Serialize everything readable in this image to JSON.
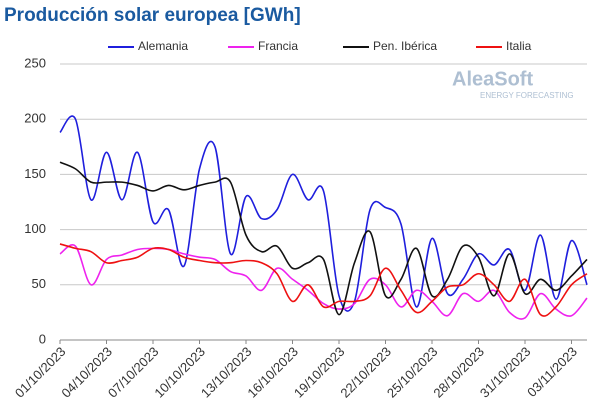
{
  "chart_data": {
    "type": "line",
    "title": "Producción solar europea [GWh]",
    "watermark": {
      "name": "AleaSoft",
      "tagline": "ENERGY FORECASTING"
    },
    "categories": [
      "01/10/2023",
      null,
      null,
      "04/10/2023",
      null,
      null,
      "07/10/2023",
      null,
      null,
      "10/10/2023",
      null,
      null,
      "13/10/2023",
      null,
      null,
      "16/10/2023",
      null,
      null,
      "19/10/2023",
      null,
      null,
      "22/10/2023",
      null,
      null,
      "25/10/2023",
      null,
      null,
      "28/10/2023",
      null,
      null,
      "31/10/2023",
      null,
      null,
      "03/11/2023",
      null
    ],
    "series": [
      {
        "name": "Alemania",
        "color": "#1f1fdd",
        "values": [
          188,
          200,
          127,
          170,
          127,
          170,
          107,
          118,
          67,
          155,
          175,
          78,
          130,
          110,
          118,
          150,
          127,
          135,
          40,
          35,
          118,
          120,
          105,
          30,
          92,
          42,
          55,
          78,
          68,
          82,
          45,
          95,
          37,
          90,
          50
        ]
      },
      {
        "name": "Francia",
        "color": "#ee22ee",
        "values": [
          78,
          85,
          50,
          73,
          77,
          82,
          83,
          82,
          78,
          75,
          73,
          62,
          58,
          45,
          65,
          55,
          45,
          33,
          28,
          33,
          55,
          50,
          30,
          45,
          35,
          22,
          42,
          35,
          45,
          25,
          20,
          42,
          28,
          22,
          38
        ]
      },
      {
        "name": "Pen. Ibérica",
        "color": "#111111",
        "values": [
          161,
          155,
          143,
          143,
          143,
          140,
          135,
          140,
          136,
          140,
          143,
          143,
          95,
          80,
          85,
          65,
          70,
          73,
          23,
          70,
          98,
          40,
          55,
          83,
          40,
          55,
          85,
          75,
          40,
          78,
          42,
          55,
          45,
          58,
          73
        ]
      },
      {
        "name": "Italia",
        "color": "#ee1111",
        "values": [
          87,
          83,
          80,
          70,
          72,
          75,
          83,
          82,
          75,
          72,
          70,
          70,
          72,
          70,
          60,
          35,
          50,
          30,
          35,
          35,
          40,
          65,
          45,
          25,
          35,
          48,
          50,
          60,
          50,
          35,
          55,
          23,
          30,
          50,
          60
        ]
      }
    ],
    "ylim": [
      0,
      250
    ],
    "yticks": [
      0,
      50,
      100,
      150,
      200,
      250
    ],
    "grid": true
  }
}
